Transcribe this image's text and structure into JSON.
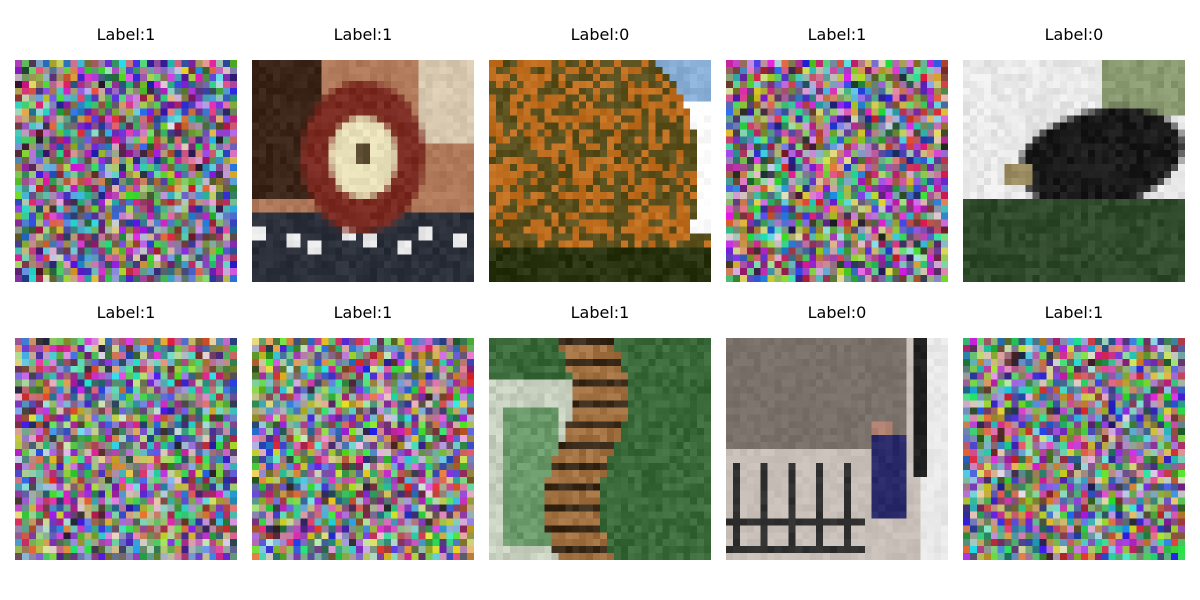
{
  "figure": {
    "panels": [
      {
        "label": "Label:1",
        "content": "noise",
        "tint": "#6a4f80"
      },
      {
        "label": "Label:1",
        "content": "clock",
        "tint": "#8a5a3a"
      },
      {
        "label": "Label:0",
        "content": "tree",
        "tint": "#7a6a2a"
      },
      {
        "label": "Label:1",
        "content": "noise",
        "tint": "#6a5a7a"
      },
      {
        "label": "Label:0",
        "content": "bear",
        "tint": "#3a4a3a"
      },
      {
        "label": "Label:1",
        "content": "noise",
        "tint": "#7a5f8a"
      },
      {
        "label": "Label:1",
        "content": "noise",
        "tint": "#7a7a6a"
      },
      {
        "label": "Label:1",
        "content": "tiger",
        "tint": "#6a7a5a"
      },
      {
        "label": "Label:0",
        "content": "stairs",
        "tint": "#7a7070"
      },
      {
        "label": "Label:1",
        "content": "noise",
        "tint": "#6a6a7a"
      }
    ]
  }
}
